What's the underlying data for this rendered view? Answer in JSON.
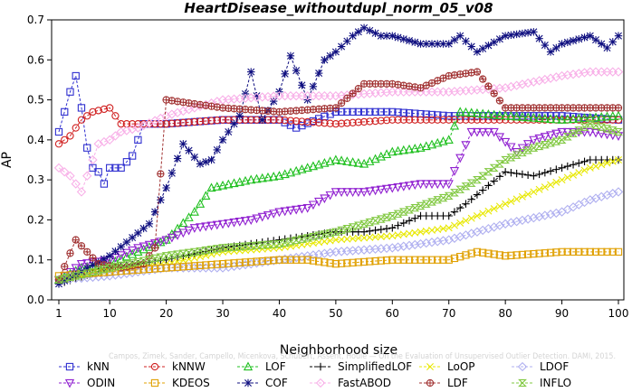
{
  "chart_data": {
    "type": "line",
    "title": "HeartDisease_withoutdupl_norm_05_v08",
    "xlabel": "Neighborhood size",
    "ylabel": "AP",
    "xlim": [
      1,
      100
    ],
    "ylim": [
      0,
      0.7
    ],
    "x_ticks": [
      1,
      10,
      20,
      30,
      40,
      50,
      60,
      70,
      80,
      90,
      100
    ],
    "y_ticks": [
      0.0,
      0.1,
      0.2,
      0.3,
      0.4,
      0.5,
      0.6,
      0.7
    ],
    "grid": false,
    "legend_position": "bottom",
    "watermark": "Campos, Zimek, Sander, Campello, Micenkova, Schubert, Assent, Houle — On the Evaluation of Unsupervised Outlier Detection. DAMI, 2015.",
    "series": [
      {
        "name": "kNN",
        "color": "#3030d0",
        "marker": "square",
        "points": [
          [
            1,
            0.42
          ],
          [
            2,
            0.47
          ],
          [
            3,
            0.52
          ],
          [
            4,
            0.56
          ],
          [
            5,
            0.48
          ],
          [
            6,
            0.38
          ],
          [
            7,
            0.33
          ],
          [
            8,
            0.32
          ],
          [
            9,
            0.29
          ],
          [
            10,
            0.33
          ],
          [
            12,
            0.33
          ],
          [
            14,
            0.36
          ],
          [
            16,
            0.44
          ],
          [
            20,
            0.44
          ],
          [
            30,
            0.45
          ],
          [
            40,
            0.45
          ],
          [
            43,
            0.43
          ],
          [
            50,
            0.47
          ],
          [
            60,
            0.47
          ],
          [
            70,
            0.46
          ],
          [
            80,
            0.46
          ],
          [
            90,
            0.46
          ],
          [
            100,
            0.45
          ]
        ]
      },
      {
        "name": "kNNW",
        "color": "#d02020",
        "marker": "circle",
        "points": [
          [
            1,
            0.39
          ],
          [
            3,
            0.41
          ],
          [
            5,
            0.45
          ],
          [
            7,
            0.47
          ],
          [
            10,
            0.48
          ],
          [
            12,
            0.44
          ],
          [
            20,
            0.44
          ],
          [
            30,
            0.45
          ],
          [
            40,
            0.45
          ],
          [
            50,
            0.44
          ],
          [
            60,
            0.45
          ],
          [
            70,
            0.45
          ],
          [
            80,
            0.45
          ],
          [
            90,
            0.45
          ],
          [
            100,
            0.45
          ]
        ]
      },
      {
        "name": "LOF",
        "color": "#20c020",
        "marker": "triangle-up",
        "points": [
          [
            1,
            0.05
          ],
          [
            5,
            0.08
          ],
          [
            10,
            0.09
          ],
          [
            15,
            0.12
          ],
          [
            20,
            0.15
          ],
          [
            25,
            0.22
          ],
          [
            28,
            0.28
          ],
          [
            35,
            0.3
          ],
          [
            40,
            0.31
          ],
          [
            45,
            0.33
          ],
          [
            50,
            0.35
          ],
          [
            55,
            0.34
          ],
          [
            60,
            0.37
          ],
          [
            65,
            0.38
          ],
          [
            70,
            0.4
          ],
          [
            72,
            0.47
          ],
          [
            80,
            0.46
          ],
          [
            90,
            0.45
          ],
          [
            100,
            0.46
          ]
        ]
      },
      {
        "name": "SimplifiedLOF",
        "color": "#000000",
        "marker": "plus",
        "points": [
          [
            1,
            0.04
          ],
          [
            10,
            0.08
          ],
          [
            20,
            0.1
          ],
          [
            30,
            0.13
          ],
          [
            40,
            0.15
          ],
          [
            50,
            0.17
          ],
          [
            55,
            0.17
          ],
          [
            60,
            0.18
          ],
          [
            65,
            0.21
          ],
          [
            70,
            0.21
          ],
          [
            73,
            0.24
          ],
          [
            80,
            0.32
          ],
          [
            85,
            0.31
          ],
          [
            90,
            0.33
          ],
          [
            95,
            0.35
          ],
          [
            100,
            0.35
          ]
        ]
      },
      {
        "name": "LoOP",
        "color": "#e8e800",
        "marker": "x",
        "points": [
          [
            1,
            0.05
          ],
          [
            10,
            0.07
          ],
          [
            20,
            0.09
          ],
          [
            30,
            0.12
          ],
          [
            40,
            0.13
          ],
          [
            50,
            0.15
          ],
          [
            60,
            0.16
          ],
          [
            70,
            0.18
          ],
          [
            80,
            0.24
          ],
          [
            90,
            0.3
          ],
          [
            95,
            0.33
          ],
          [
            100,
            0.35
          ]
        ]
      },
      {
        "name": "LDOF",
        "color": "#b0b0f0",
        "marker": "diamond",
        "points": [
          [
            1,
            0.05
          ],
          [
            10,
            0.06
          ],
          [
            20,
            0.08
          ],
          [
            30,
            0.08
          ],
          [
            40,
            0.1
          ],
          [
            50,
            0.12
          ],
          [
            60,
            0.13
          ],
          [
            70,
            0.15
          ],
          [
            80,
            0.19
          ],
          [
            90,
            0.22
          ],
          [
            95,
            0.25
          ],
          [
            100,
            0.27
          ]
        ]
      },
      {
        "name": "ODIN",
        "color": "#9020d0",
        "marker": "triangle-down",
        "points": [
          [
            1,
            0.05
          ],
          [
            5,
            0.09
          ],
          [
            10,
            0.1
          ],
          [
            15,
            0.13
          ],
          [
            20,
            0.15
          ],
          [
            25,
            0.18
          ],
          [
            30,
            0.19
          ],
          [
            35,
            0.2
          ],
          [
            40,
            0.22
          ],
          [
            45,
            0.23
          ],
          [
            50,
            0.27
          ],
          [
            55,
            0.27
          ],
          [
            60,
            0.28
          ],
          [
            65,
            0.29
          ],
          [
            70,
            0.29
          ],
          [
            74,
            0.42
          ],
          [
            78,
            0.42
          ],
          [
            82,
            0.37
          ],
          [
            85,
            0.4
          ],
          [
            90,
            0.42
          ],
          [
            95,
            0.42
          ],
          [
            100,
            0.41
          ]
        ]
      },
      {
        "name": "KDEOS",
        "color": "#e0a000",
        "marker": "square",
        "points": [
          [
            1,
            0.06
          ],
          [
            10,
            0.07
          ],
          [
            20,
            0.08
          ],
          [
            30,
            0.09
          ],
          [
            40,
            0.1
          ],
          [
            45,
            0.1
          ],
          [
            50,
            0.09
          ],
          [
            60,
            0.1
          ],
          [
            70,
            0.1
          ],
          [
            75,
            0.12
          ],
          [
            80,
            0.11
          ],
          [
            90,
            0.12
          ],
          [
            98,
            0.12
          ],
          [
            100,
            0.12
          ]
        ]
      },
      {
        "name": "COF",
        "color": "#101080",
        "marker": "asterisk",
        "points": [
          [
            1,
            0.04
          ],
          [
            10,
            0.11
          ],
          [
            17,
            0.19
          ],
          [
            20,
            0.28
          ],
          [
            23,
            0.39
          ],
          [
            26,
            0.34
          ],
          [
            28,
            0.35
          ],
          [
            30,
            0.4
          ],
          [
            33,
            0.46
          ],
          [
            35,
            0.57
          ],
          [
            37,
            0.45
          ],
          [
            40,
            0.52
          ],
          [
            42,
            0.61
          ],
          [
            45,
            0.5
          ],
          [
            48,
            0.6
          ],
          [
            50,
            0.62
          ],
          [
            53,
            0.66
          ],
          [
            55,
            0.68
          ],
          [
            58,
            0.66
          ],
          [
            60,
            0.66
          ],
          [
            65,
            0.64
          ],
          [
            70,
            0.64
          ],
          [
            72,
            0.66
          ],
          [
            75,
            0.62
          ],
          [
            80,
            0.66
          ],
          [
            85,
            0.67
          ],
          [
            88,
            0.62
          ],
          [
            90,
            0.64
          ],
          [
            95,
            0.66
          ],
          [
            98,
            0.63
          ],
          [
            100,
            0.66
          ]
        ]
      },
      {
        "name": "FastABOD",
        "color": "#f8b0e8",
        "marker": "diamond",
        "points": [
          [
            1,
            0.33
          ],
          [
            3,
            0.31
          ],
          [
            5,
            0.27
          ],
          [
            8,
            0.39
          ],
          [
            10,
            0.4
          ],
          [
            12,
            0.42
          ],
          [
            15,
            0.43
          ],
          [
            20,
            0.46
          ],
          [
            25,
            0.48
          ],
          [
            30,
            0.5
          ],
          [
            40,
            0.51
          ],
          [
            50,
            0.51
          ],
          [
            60,
            0.52
          ],
          [
            70,
            0.52
          ],
          [
            80,
            0.53
          ],
          [
            90,
            0.56
          ],
          [
            95,
            0.57
          ],
          [
            100,
            0.57
          ]
        ]
      },
      {
        "name": "LDF",
        "color": "#a03030",
        "marker": "circle-cross",
        "points": [
          [
            1,
            0.05
          ],
          [
            4,
            0.15
          ],
          [
            8,
            0.09
          ],
          [
            12,
            0.08
          ],
          [
            16,
            0.09
          ],
          [
            18,
            0.13
          ],
          [
            20,
            0.5
          ],
          [
            30,
            0.48
          ],
          [
            40,
            0.47
          ],
          [
            50,
            0.48
          ],
          [
            55,
            0.54
          ],
          [
            60,
            0.54
          ],
          [
            65,
            0.53
          ],
          [
            70,
            0.56
          ],
          [
            75,
            0.57
          ],
          [
            80,
            0.48
          ],
          [
            90,
            0.48
          ],
          [
            100,
            0.48
          ]
        ]
      },
      {
        "name": "INFLO",
        "color": "#80c840",
        "marker": "hourglass",
        "points": [
          [
            1,
            0.05
          ],
          [
            10,
            0.08
          ],
          [
            20,
            0.11
          ],
          [
            30,
            0.13
          ],
          [
            40,
            0.14
          ],
          [
            50,
            0.17
          ],
          [
            60,
            0.21
          ],
          [
            70,
            0.26
          ],
          [
            75,
            0.3
          ],
          [
            80,
            0.35
          ],
          [
            85,
            0.38
          ],
          [
            90,
            0.4
          ],
          [
            95,
            0.44
          ],
          [
            100,
            0.42
          ]
        ]
      }
    ]
  }
}
